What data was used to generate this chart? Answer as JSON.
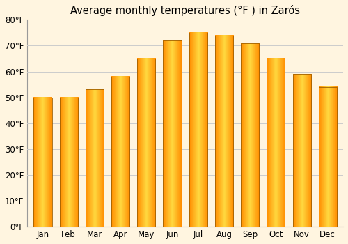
{
  "title": "Average monthly temperatures (°F ) in Zarós",
  "months": [
    "Jan",
    "Feb",
    "Mar",
    "Apr",
    "May",
    "Jun",
    "Jul",
    "Aug",
    "Sep",
    "Oct",
    "Nov",
    "Dec"
  ],
  "values": [
    50,
    50,
    53,
    58,
    65,
    72,
    75,
    74,
    71,
    65,
    59,
    54
  ],
  "ylim": [
    0,
    80
  ],
  "yticks": [
    0,
    10,
    20,
    30,
    40,
    50,
    60,
    70,
    80
  ],
  "ytick_labels": [
    "0°F",
    "10°F",
    "20°F",
    "30°F",
    "40°F",
    "50°F",
    "60°F",
    "70°F",
    "80°F"
  ],
  "bar_color_center": "#FFD966",
  "bar_color_edge": "#E08000",
  "bar_edge_color": "#A06000",
  "background_color": "#FFF5E0",
  "plot_bg_color": "#FFF5E0",
  "grid_color": "#cccccc",
  "title_fontsize": 10.5,
  "tick_fontsize": 8.5,
  "bar_width": 0.7
}
